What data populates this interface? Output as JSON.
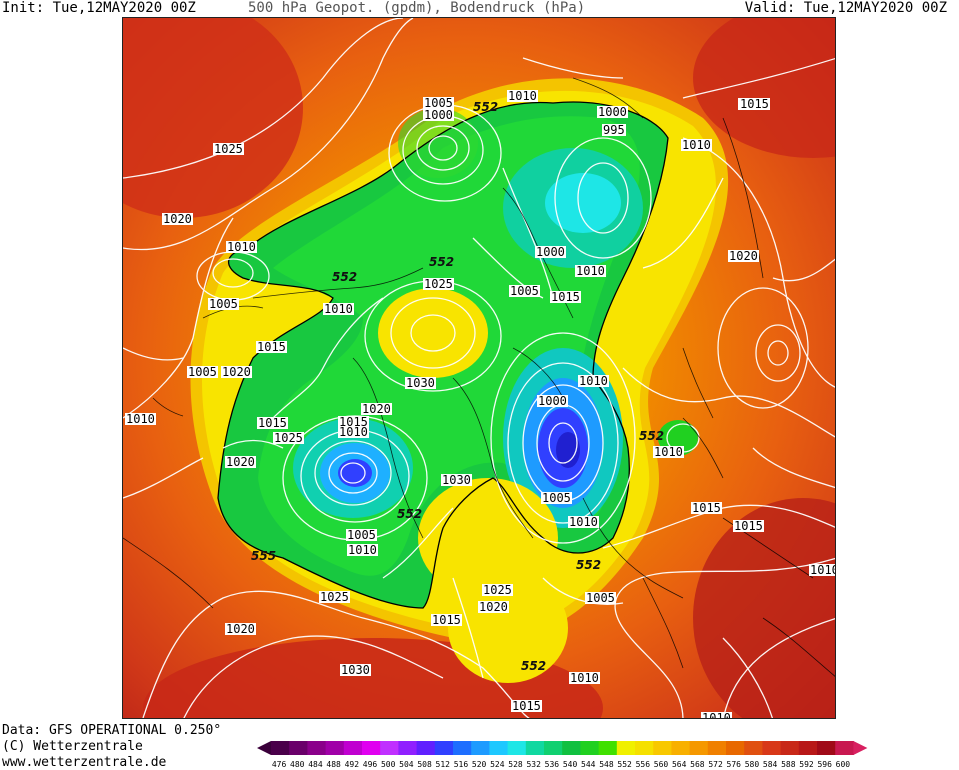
{
  "header": {
    "init": "Init: Tue,12MAY2020 00Z",
    "title": "500 hPa Geopot. (gpdm), Bodendruck (hPa)",
    "valid": "Valid: Tue,12MAY2020 00Z"
  },
  "footer": {
    "data": "Data: GFS OPERATIONAL 0.250°",
    "copyright": "(C) Wetterzentrale",
    "url": "www.wetterzentrale.de"
  },
  "map": {
    "isobar_labels": [
      "1005",
      "1000",
      "552",
      "1010",
      "1000",
      "995",
      "1010",
      "1015",
      "1025",
      "1020",
      "1010",
      "552",
      "552",
      "1005",
      "1010",
      "1025",
      "1000",
      "1010",
      "1005",
      "1015",
      "1015",
      "1020",
      "1015",
      "1015",
      "1005",
      "1020",
      "1030",
      "1010",
      "1010",
      "1020",
      "1015",
      "1010",
      "1000",
      "552",
      "1010",
      "1025",
      "1020",
      "1030",
      "1005",
      "1010",
      "1005",
      "1015",
      "1015",
      "1010",
      "555",
      "552",
      "552",
      "1025",
      "1020",
      "1005",
      "1025",
      "1015",
      "1020",
      "1010",
      "1030",
      "552",
      "1010",
      "1015",
      "1010"
    ],
    "isobar_labels_note": "",
    "shaded_field": "500 hPa geopotential (gpdm)",
    "contours": "surface pressure (hPa)"
  },
  "colorbar": {
    "ticks": [
      "476",
      "480",
      "484",
      "488",
      "492",
      "496",
      "500",
      "504",
      "508",
      "512",
      "516",
      "520",
      "524",
      "528",
      "532",
      "536",
      "540",
      "544",
      "548",
      "552",
      "556",
      "560",
      "564",
      "568",
      "572",
      "576",
      "580",
      "584",
      "588",
      "592",
      "596",
      "600"
    ],
    "colors": [
      "#4a004a",
      "#6a006a",
      "#8a008a",
      "#a000a8",
      "#c000d0",
      "#e000f0",
      "#c030ff",
      "#9020ff",
      "#6020ff",
      "#3040ff",
      "#1e6eff",
      "#1e9bff",
      "#1ec8ff",
      "#1ee6e6",
      "#10d8a0",
      "#10d070",
      "#10c040",
      "#20d020",
      "#40e000",
      "#f0f000",
      "#f5e000",
      "#f8c800",
      "#f8b000",
      "#f59800",
      "#f08000",
      "#e86800",
      "#e05010",
      "#d83818",
      "#c82818",
      "#b81818",
      "#a00a18",
      "#c81850"
    ]
  }
}
